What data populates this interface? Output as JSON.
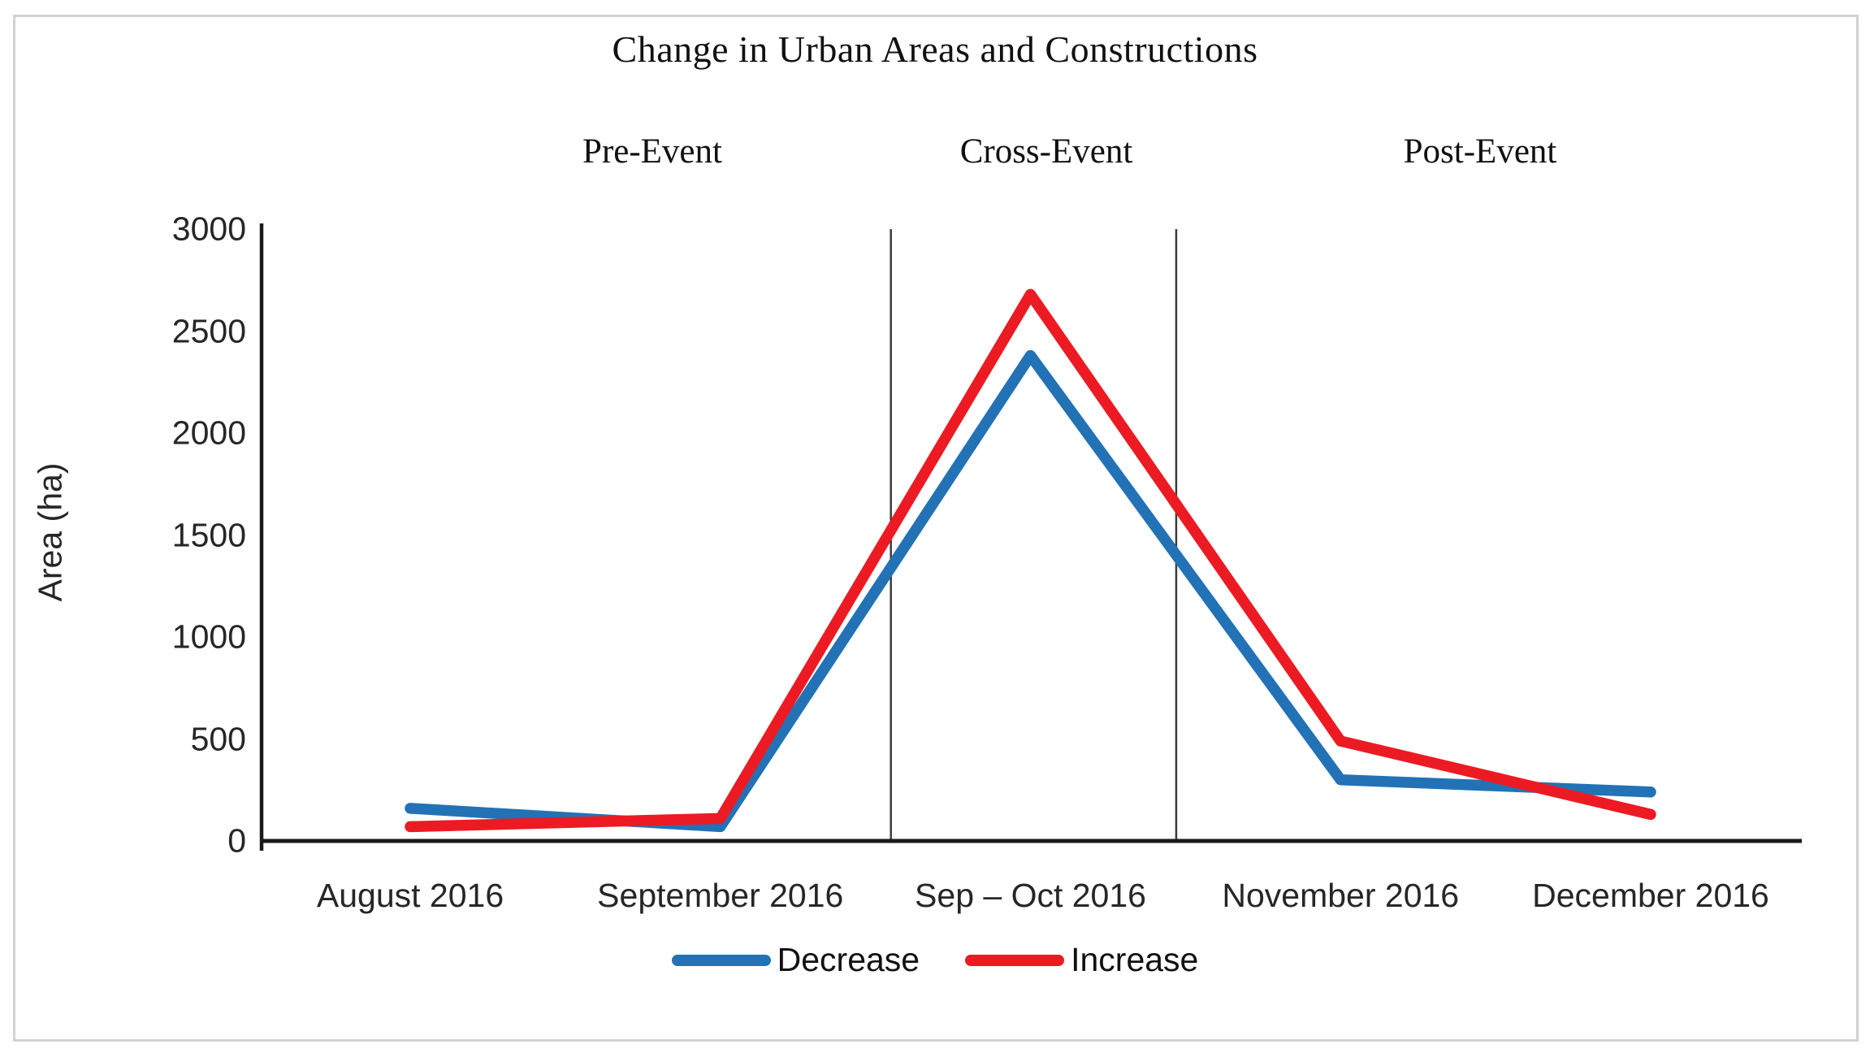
{
  "figure": {
    "title": "Change in Urban Areas and Constructions",
    "ylabel": "Area (ha)"
  },
  "chart_data": {
    "type": "line",
    "title": "Change in Urban Areas and Constructions",
    "categories": [
      "August 2016",
      "September 2016",
      "Sep – Oct 2016",
      "November 2016",
      "December 2016"
    ],
    "series": [
      {
        "name": "Decrease",
        "color": "#2272b5",
        "values": [
          160,
          70,
          2380,
          300,
          240
        ]
      },
      {
        "name": "Increase",
        "color": "#ec1b23",
        "values": [
          70,
          110,
          2680,
          490,
          130
        ]
      }
    ],
    "xlabel": "",
    "ylabel": "Area (ha)",
    "ylim": [
      0,
      3000
    ],
    "yticks": [
      0,
      500,
      1000,
      1500,
      2000,
      2500,
      3000
    ],
    "annotations": [
      "Pre-Event",
      "Cross-Event",
      "Post-Event"
    ],
    "annotation_regions": "vertical divider lines between September/Sep–Oct and Sep–Oct/November",
    "grid": false,
    "legend_position": "bottom",
    "axis_color": "#1a1a1a",
    "divider_color": "#3c3c3c"
  }
}
